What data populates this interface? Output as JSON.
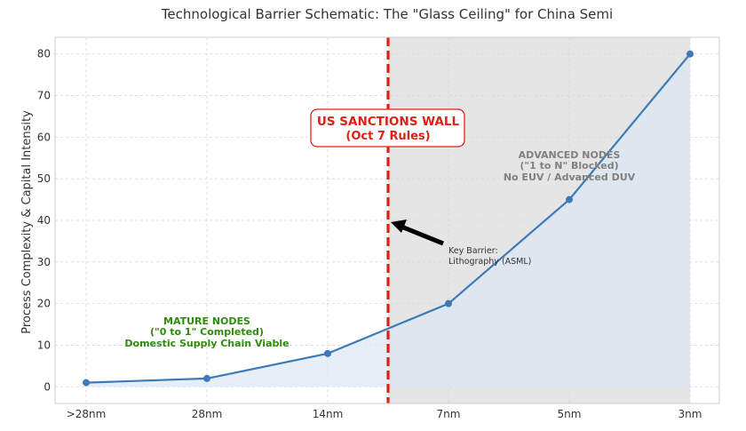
{
  "chart_data": {
    "type": "line",
    "title": "Technological Barrier Schematic: The \"Glass Ceiling\" for China Semi",
    "xlabel": "",
    "ylabel": "Process Complexity & Capital Intensity",
    "categories": [
      ">28nm",
      "28nm",
      "14nm",
      "7nm",
      "5nm",
      "3nm"
    ],
    "values": [
      1,
      2,
      8,
      20,
      45,
      80
    ],
    "ylim": [
      -4,
      84
    ],
    "yticks": [
      0,
      10,
      20,
      30,
      40,
      50,
      60,
      70,
      80
    ],
    "grid": true,
    "line_color": "#3d7ab8",
    "fill_color": "#dce8f4",
    "shade_color": "#cfcfcf",
    "sanctions_color": "#e02015",
    "sanctions_x_index": 2.5,
    "sanctions_wall": {
      "line1": "US SANCTIONS WALL",
      "line2": "(Oct 7 Rules)",
      "color": "#e02015"
    },
    "advanced_nodes": {
      "line1": "ADVANCED NODES",
      "line2": "(\"1 to N\" Blocked)",
      "line3": "No EUV / Advanced DUV",
      "color": "#808080"
    },
    "mature_nodes": {
      "line1": "MATURE NODES",
      "line2": "(\"0 to 1\" Completed)",
      "line3": "Domestic Supply Chain Viable",
      "color": "#2e8b0e"
    },
    "key_barrier": {
      "line1": "Key Barrier:",
      "line2": "Lithography (ASML)",
      "arrow_target_y": 40
    }
  }
}
